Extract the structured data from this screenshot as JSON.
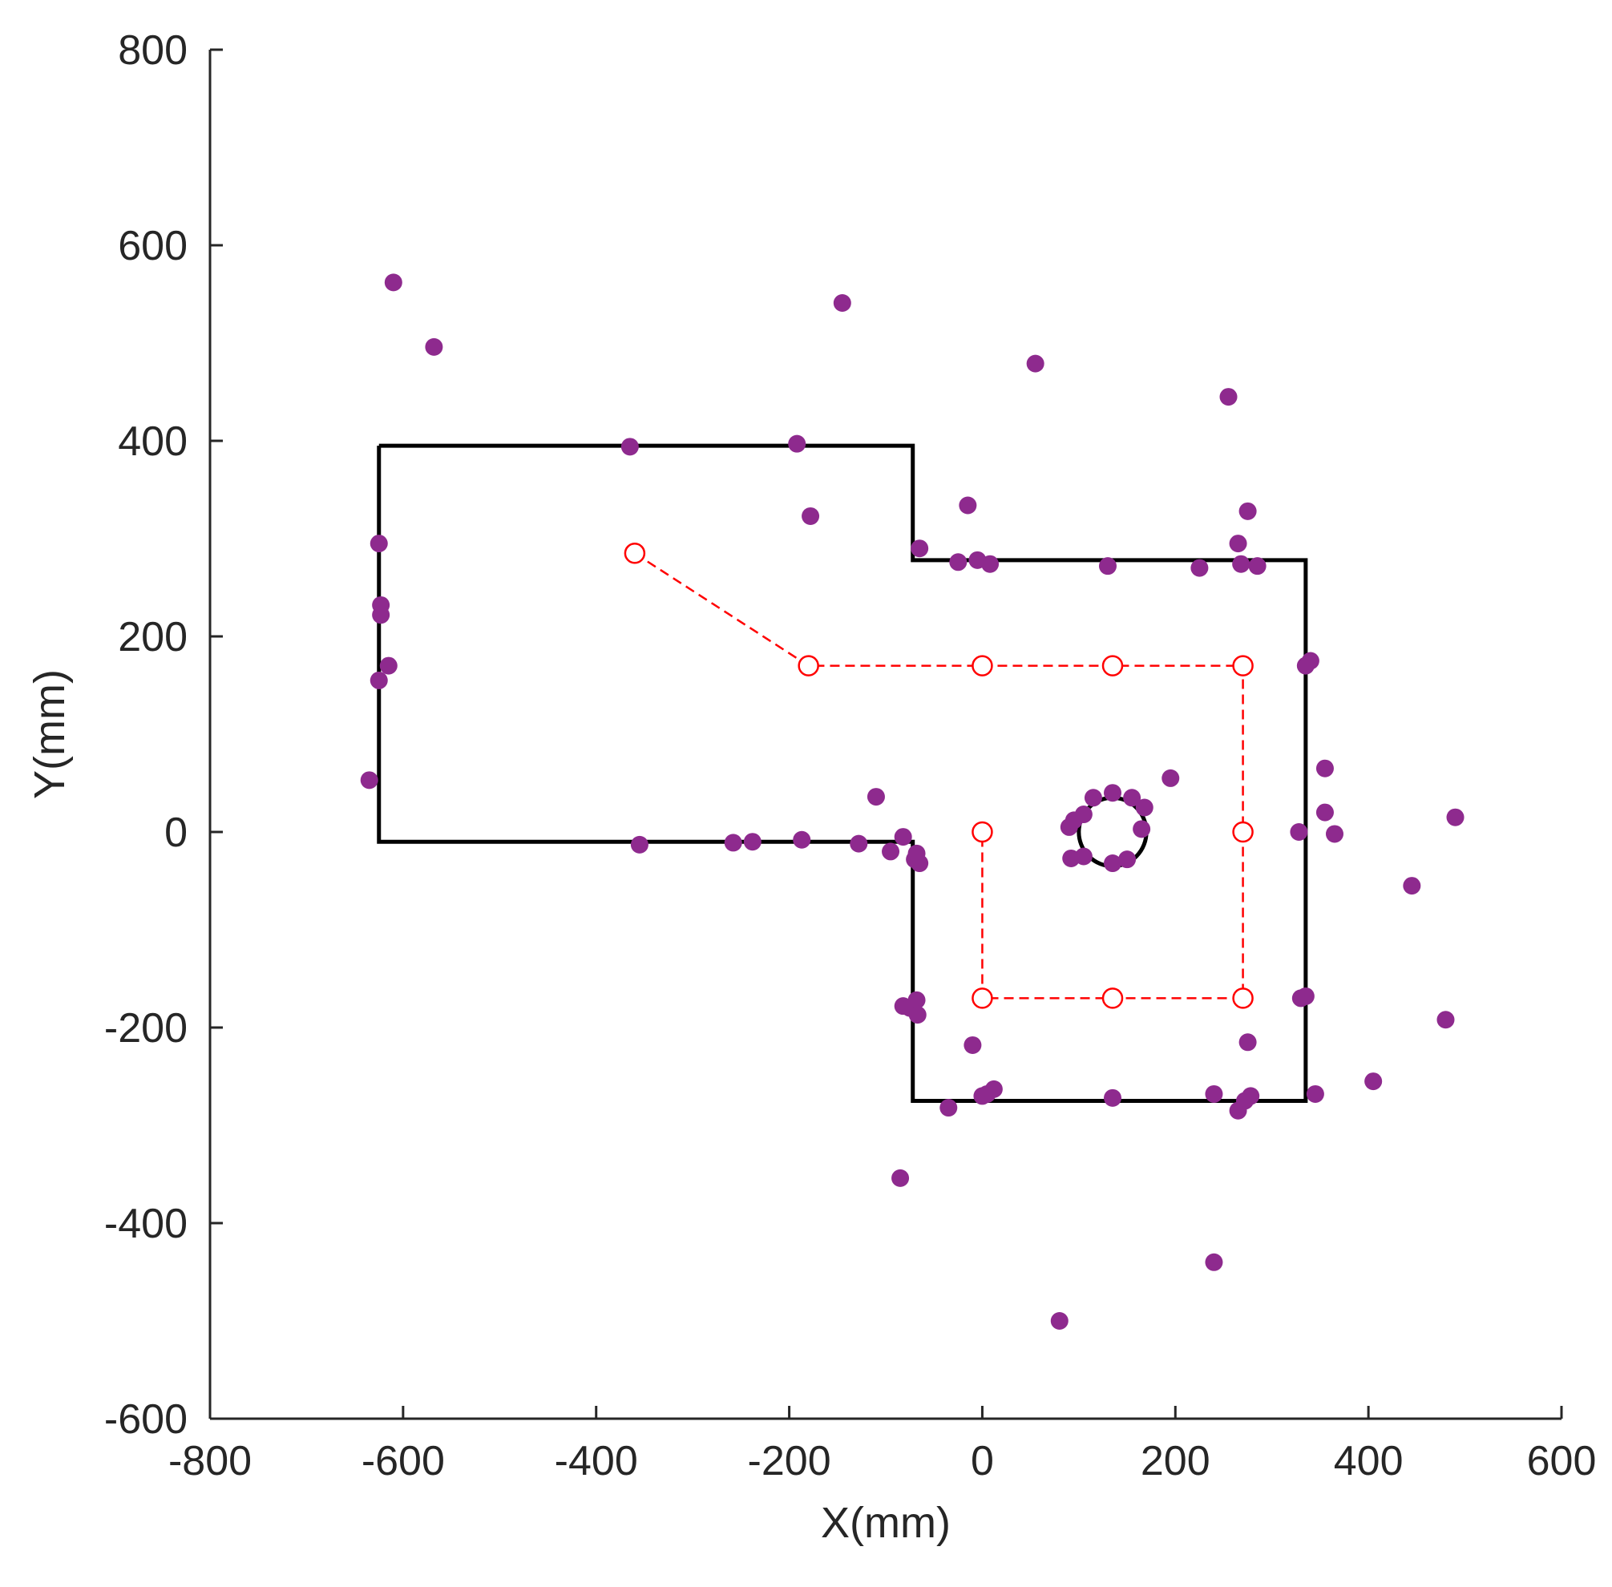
{
  "chart_data": {
    "type": "scatter",
    "title": "",
    "xlabel": "X(mm)",
    "ylabel": "Y(mm)",
    "xlim": [
      -800,
      600
    ],
    "ylim": [
      -600,
      800
    ],
    "xticks": [
      -800,
      -600,
      -400,
      -200,
      0,
      200,
      400,
      600
    ],
    "yticks": [
      800,
      600,
      400,
      200,
      0,
      -200,
      -400,
      -600
    ],
    "xtick_labels": [
      "-800",
      "-600",
      "-400",
      "-200",
      "0",
      "200",
      "400",
      "600"
    ],
    "ytick_labels": [
      "800",
      "600",
      "400",
      "200",
      "0",
      "-200",
      "-400",
      "-600"
    ],
    "grid": false,
    "legend": "none",
    "colors": {
      "boundary": "#000000",
      "path": "#ff0000",
      "points": "#8e2a8e",
      "axes": "#262626"
    },
    "boundary_polygon": [
      [
        -625,
        395
      ],
      [
        -72,
        395
      ],
      [
        -72,
        278
      ],
      [
        335,
        278
      ],
      [
        335,
        -275
      ],
      [
        -72,
        -275
      ],
      [
        -72,
        -10
      ],
      [
        -625,
        -10
      ],
      [
        -625,
        395
      ]
    ],
    "obstacle_circle": {
      "cx": 135,
      "cy": 0,
      "r": 35
    },
    "path": [
      [
        -360,
        285
      ],
      [
        -180,
        170
      ],
      [
        0,
        170
      ],
      [
        135,
        170
      ],
      [
        270,
        170
      ],
      [
        270,
        0
      ],
      [
        270,
        -170
      ],
      [
        135,
        -170
      ],
      [
        0,
        -170
      ],
      [
        0,
        0
      ]
    ],
    "points": [
      [
        -610,
        562
      ],
      [
        -568,
        496
      ],
      [
        -145,
        541
      ],
      [
        55,
        479
      ],
      [
        255,
        445
      ],
      [
        -365,
        394
      ],
      [
        -192,
        397
      ],
      [
        -178,
        323
      ],
      [
        -15,
        334
      ],
      [
        -65,
        290
      ],
      [
        -25,
        276
      ],
      [
        -5,
        278
      ],
      [
        8,
        274
      ],
      [
        130,
        272
      ],
      [
        225,
        270
      ],
      [
        265,
        295
      ],
      [
        275,
        328
      ],
      [
        268,
        274
      ],
      [
        285,
        272
      ],
      [
        -625,
        295
      ],
      [
        -623,
        232
      ],
      [
        -623,
        222
      ],
      [
        -615,
        170
      ],
      [
        -625,
        155
      ],
      [
        -635,
        53
      ],
      [
        -355,
        -13
      ],
      [
        -258,
        -11
      ],
      [
        -238,
        -10
      ],
      [
        -187,
        -8
      ],
      [
        -128,
        -12
      ],
      [
        -110,
        36
      ],
      [
        -95,
        -20
      ],
      [
        -82,
        -5
      ],
      [
        -70,
        -28
      ],
      [
        -65,
        -32
      ],
      [
        -68,
        -22
      ],
      [
        90,
        5
      ],
      [
        95,
        12
      ],
      [
        105,
        18
      ],
      [
        115,
        35
      ],
      [
        135,
        40
      ],
      [
        155,
        35
      ],
      [
        168,
        25
      ],
      [
        165,
        3
      ],
      [
        92,
        -27
      ],
      [
        105,
        -25
      ],
      [
        135,
        -32
      ],
      [
        150,
        -28
      ],
      [
        195,
        55
      ],
      [
        335,
        170
      ],
      [
        340,
        175
      ],
      [
        355,
        65
      ],
      [
        355,
        20
      ],
      [
        365,
        -2
      ],
      [
        328,
        0
      ],
      [
        490,
        15
      ],
      [
        445,
        -55
      ],
      [
        -82,
        -178
      ],
      [
        -68,
        -172
      ],
      [
        -75,
        -180
      ],
      [
        -67,
        -187
      ],
      [
        -10,
        -218
      ],
      [
        -35,
        -282
      ],
      [
        0,
        -270
      ],
      [
        5,
        -268
      ],
      [
        12,
        -263
      ],
      [
        135,
        -272
      ],
      [
        240,
        -268
      ],
      [
        265,
        -285
      ],
      [
        272,
        -275
      ],
      [
        278,
        -270
      ],
      [
        275,
        -215
      ],
      [
        330,
        -170
      ],
      [
        335,
        -168
      ],
      [
        345,
        -268
      ],
      [
        480,
        -192
      ],
      [
        405,
        -255
      ],
      [
        -85,
        -354
      ],
      [
        80,
        -500
      ],
      [
        240,
        -440
      ]
    ]
  }
}
